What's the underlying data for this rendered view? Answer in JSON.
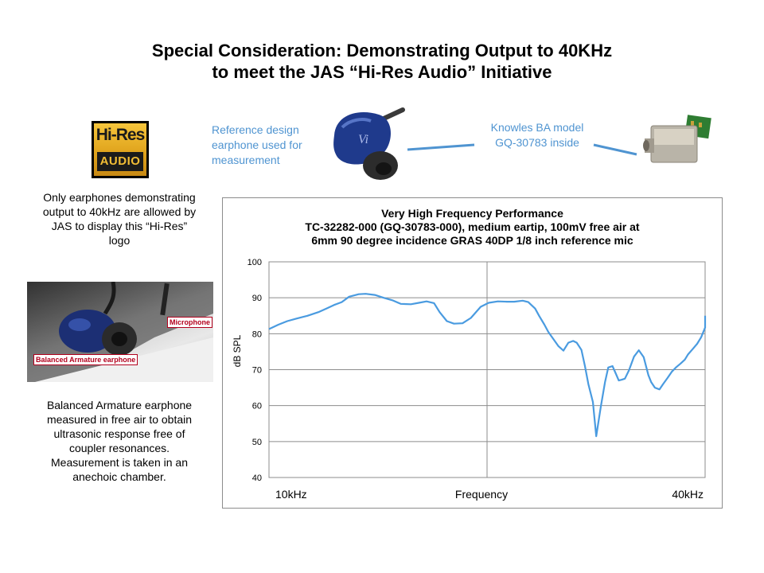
{
  "title": {
    "line1": "Special Consideration: Demonstrating Output to 40KHz",
    "line2": "to meet the JAS “Hi-Res Audio” Initiative"
  },
  "logo": {
    "top": "Hi-Res",
    "bottom": "AUDIO",
    "icon": "hi-res-audio-logo"
  },
  "left_text_1": [
    "Only earphones demonstrating",
    "output to 40kHz are allowed by",
    "JAS to display this “Hi-Res”",
    "logo"
  ],
  "photo_labels": {
    "microphone": "Microphone",
    "earphone": "Balanced Armature earphone"
  },
  "left_text_2": [
    "Balanced Armature earphone",
    "measured in free air to obtain",
    "ultrasonic response free of",
    "coupler resonances.",
    "Measurement is taken in an",
    "anechoic chamber."
  ],
  "callouts": {
    "reference": [
      "Reference design",
      "earphone used for",
      "measurement"
    ],
    "knowles": [
      "Knowles BA model",
      "GQ-30783 inside"
    ]
  },
  "colors": {
    "accent": "#4f94d1",
    "curve": "#4a9be0",
    "label_red": "#b2001d",
    "logo_gold": "#e0a41d"
  },
  "chart_data": {
    "type": "line",
    "title": [
      "Very High Frequency Performance",
      "TC-32282-000 (GQ-30783-000), medium eartip, 100mV free air at",
      "6mm 90 degree incidence GRAS 40DP 1/8 inch reference mic"
    ],
    "xlabel": "Frequency",
    "ylabel": "dB SPL",
    "x_tick_labels": [
      "10kHz",
      "40kHz"
    ],
    "xlim": [
      10,
      40
    ],
    "x_scale": "log",
    "ylim": [
      40,
      100
    ],
    "yticks": [
      "100",
      "90",
      "80",
      "70",
      "60",
      "50",
      "40"
    ],
    "grid": true,
    "series": [
      {
        "x": [
          10.0,
          10.3,
          10.6,
          10.9,
          11.3,
          11.7,
          12.0,
          12.3,
          12.6,
          12.9,
          13.3,
          13.6,
          14.0,
          14.4,
          14.8,
          15.2,
          15.7,
          16.1,
          16.5,
          16.9,
          17.2,
          17.6,
          18.0,
          18.5,
          19.0,
          19.6,
          20.1,
          20.7,
          21.3,
          21.8,
          22.4,
          22.8,
          23.3,
          23.6,
          24.0,
          24.3,
          24.7,
          25.1,
          25.5,
          25.9,
          26.3,
          26.6,
          27.0,
          27.3,
          27.6,
          28.0,
          28.3,
          28.7,
          29.1,
          29.4,
          29.8,
          30.1,
          30.4,
          30.7,
          31.0,
          31.4,
          31.9,
          32.4,
          32.9,
          33.4,
          33.7,
          34.1,
          34.6,
          35.0,
          35.5,
          36.0,
          36.5,
          37.0,
          37.5,
          37.9,
          38.4,
          39.0,
          39.5,
          40.0,
          40.8
        ],
        "y": [
          81.3,
          82.5,
          83.5,
          84.2,
          85.0,
          86.0,
          87.0,
          88.0,
          88.8,
          90.3,
          91.0,
          91.1,
          90.8,
          90.0,
          89.3,
          88.3,
          88.2,
          88.6,
          89.0,
          88.5,
          86.0,
          83.5,
          82.8,
          82.9,
          84.4,
          87.5,
          88.6,
          89.0,
          88.9,
          88.9,
          89.2,
          88.8,
          87.0,
          85.0,
          82.5,
          80.5,
          78.5,
          76.5,
          75.3,
          77.5,
          78.0,
          77.5,
          75.5,
          71.0,
          66.0,
          61.0,
          51.5,
          59.5,
          66.5,
          70.6,
          71.0,
          69.0,
          67.0,
          67.2,
          67.5,
          69.8,
          73.6,
          75.4,
          73.5,
          68.5,
          66.5,
          65.0,
          64.5,
          66.0,
          67.7,
          69.5,
          70.7,
          71.7,
          72.8,
          74.3,
          75.6,
          77.2,
          79.0,
          81.7,
          85.0
        ]
      }
    ]
  }
}
